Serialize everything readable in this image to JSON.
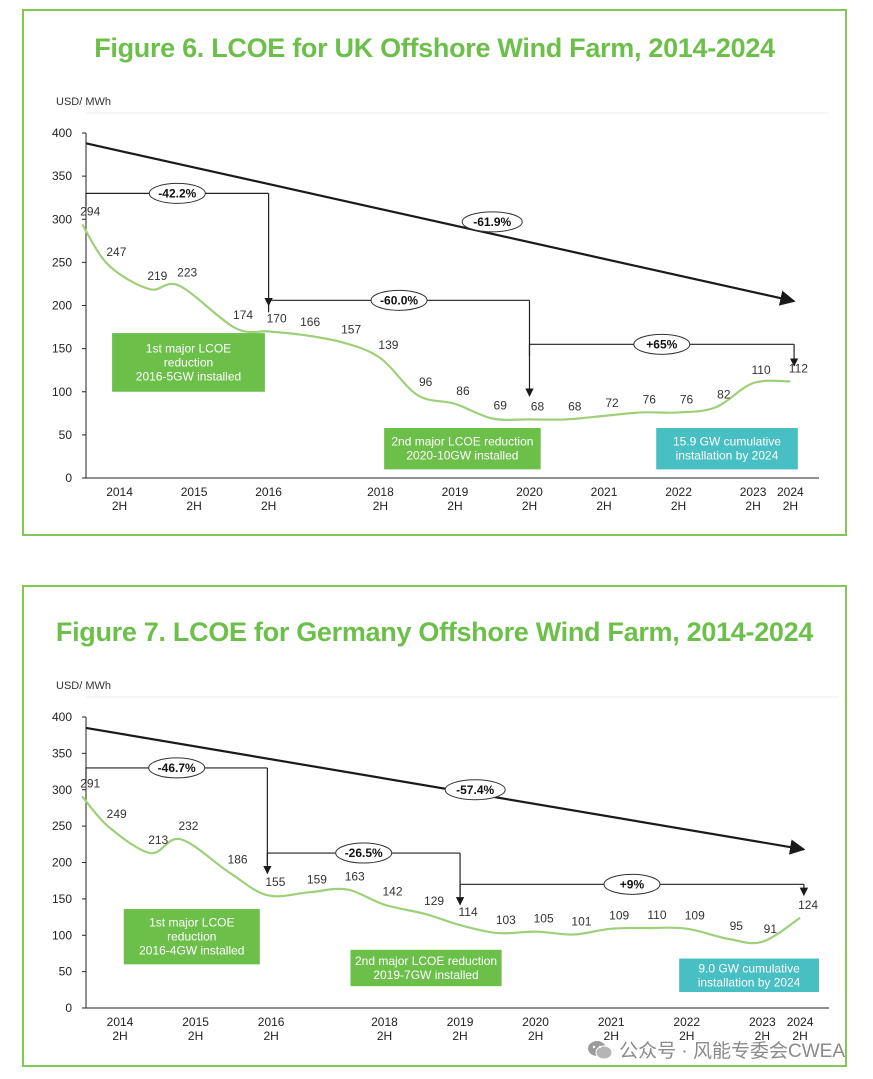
{
  "watermark": {
    "text": "公众号 · 风能专委会CWEA",
    "icon": "wechat-icon"
  },
  "colors": {
    "accent": "#6cc04a",
    "curve": "#9ed07a",
    "annot_green": "#6cc04a",
    "annot_teal": "#47bfc3",
    "trend": "#1a1a1a"
  },
  "chart_data": [
    {
      "type": "line",
      "title": "Figure 6. LCOE for UK Offshore Wind Farm, 2014-2024",
      "ylabel": "USD/ MWh",
      "xlabel": "",
      "ylim": [
        0,
        400
      ],
      "yticks": [
        0,
        50,
        100,
        150,
        200,
        250,
        300,
        350,
        400
      ],
      "xticks": [
        {
          "x": 2014.5,
          "label1": "2014",
          "label2": "2H"
        },
        {
          "x": 2015.5,
          "label1": "2015",
          "label2": "2H"
        },
        {
          "x": 2016.5,
          "label1": "2016",
          "label2": "2H"
        },
        {
          "x": 2018.0,
          "label1": "2018",
          "label2": "2H"
        },
        {
          "x": 2019.0,
          "label1": "2019",
          "label2": "2H"
        },
        {
          "x": 2020.0,
          "label1": "2020",
          "label2": "2H"
        },
        {
          "x": 2021.0,
          "label1": "2021",
          "label2": "2H"
        },
        {
          "x": 2022.0,
          "label1": "2022",
          "label2": "2H"
        },
        {
          "x": 2023.0,
          "label1": "2023",
          "label2": "2H"
        },
        {
          "x": 2023.5,
          "label1": "2024",
          "label2": "2H"
        }
      ],
      "xrange": [
        2014.05,
        2023.75
      ],
      "series": [
        {
          "points": [
            [
              2014.0,
              294
            ],
            [
              2014.35,
              247
            ],
            [
              2014.9,
              219
            ],
            [
              2015.3,
              223
            ],
            [
              2016.05,
              174
            ],
            [
              2016.5,
              170
            ],
            [
              2016.95,
              166
            ],
            [
              2017.5,
              157
            ],
            [
              2018.0,
              139
            ],
            [
              2018.5,
              96
            ],
            [
              2019.0,
              86
            ],
            [
              2019.5,
              69
            ],
            [
              2020.0,
              68
            ],
            [
              2020.5,
              68
            ],
            [
              2021.0,
              72
            ],
            [
              2021.5,
              76
            ],
            [
              2022.0,
              76
            ],
            [
              2022.5,
              82
            ],
            [
              2023.0,
              110
            ],
            [
              2023.5,
              112
            ]
          ]
        }
      ],
      "trend": {
        "from": [
          2014.05,
          388
        ],
        "to": [
          2023.55,
          205
        ],
        "label": "-61.9%",
        "label_at": [
          2019.5,
          297
        ]
      },
      "brackets": [
        {
          "x1": 2014.05,
          "x2": 2016.5,
          "y": 330,
          "yend": 200,
          "label": "-42.2%"
        },
        {
          "x1": 2016.5,
          "x2": 2020.0,
          "y": 206,
          "yend": 95,
          "label": "-60.0%"
        },
        {
          "x1": 2020.0,
          "x2": 2023.55,
          "y": 155,
          "yend": 130,
          "label": "+65%"
        }
      ],
      "annotations": [
        {
          "lines": [
            "1st major LCOE",
            "reduction",
            "2016-5GW installed"
          ],
          "color": "teal_no",
          "bg": "green",
          "at": [
            2014.4,
            168,
            2016.45,
            100
          ]
        },
        {
          "lines": [
            "2nd major LCOE reduction",
            "2020-10GW installed"
          ],
          "bg": "green",
          "at": [
            2018.05,
            58,
            2020.15,
            10
          ]
        },
        {
          "lines": [
            "15.9 GW cumulative",
            "installation by 2024"
          ],
          "bg": "teal",
          "at": [
            2021.7,
            58,
            2023.6,
            10
          ]
        }
      ]
    },
    {
      "type": "line",
      "title": "Figure 7. LCOE for Germany Offshore Wind Farm, 2014-2024",
      "ylabel": "USD/ MWh",
      "xlabel": "",
      "ylim": [
        0,
        400
      ],
      "yticks": [
        0,
        50,
        100,
        150,
        200,
        250,
        300,
        350,
        400
      ],
      "xticks": [
        {
          "x": 2014.5,
          "label1": "2014",
          "label2": "2H"
        },
        {
          "x": 2015.5,
          "label1": "2015",
          "label2": "2H"
        },
        {
          "x": 2016.5,
          "label1": "2016",
          "label2": "2H"
        },
        {
          "x": 2018.0,
          "label1": "2018",
          "label2": "2H"
        },
        {
          "x": 2019.0,
          "label1": "2019",
          "label2": "2H"
        },
        {
          "x": 2020.0,
          "label1": "2020",
          "label2": "2H"
        },
        {
          "x": 2021.0,
          "label1": "2021",
          "label2": "2H"
        },
        {
          "x": 2022.0,
          "label1": "2022",
          "label2": "2H"
        },
        {
          "x": 2023.0,
          "label1": "2023",
          "label2": "2H"
        },
        {
          "x": 2023.5,
          "label1": "2024",
          "label2": "2H"
        }
      ],
      "xrange": [
        2014.05,
        2023.75
      ],
      "series": [
        {
          "points": [
            [
              2014.0,
              291
            ],
            [
              2014.35,
              249
            ],
            [
              2014.9,
              213
            ],
            [
              2015.3,
              232
            ],
            [
              2015.95,
              186
            ],
            [
              2016.45,
              155
            ],
            [
              2017.0,
              159
            ],
            [
              2017.5,
              163
            ],
            [
              2018.0,
              142
            ],
            [
              2018.55,
              129
            ],
            [
              2019.0,
              114
            ],
            [
              2019.5,
              103
            ],
            [
              2020.0,
              105
            ],
            [
              2020.5,
              101
            ],
            [
              2021.0,
              109
            ],
            [
              2021.5,
              110
            ],
            [
              2022.0,
              109
            ],
            [
              2022.55,
              95
            ],
            [
              2023.0,
              91
            ],
            [
              2023.5,
              124
            ]
          ]
        }
      ],
      "trend": {
        "from": [
          2014.05,
          385
        ],
        "to": [
          2023.55,
          218
        ],
        "label": "-57.4%",
        "label_at": [
          2019.2,
          300
        ]
      },
      "brackets": [
        {
          "x1": 2014.05,
          "x2": 2016.45,
          "y": 330,
          "yend": 185,
          "label": "-46.7%"
        },
        {
          "x1": 2016.45,
          "x2": 2019.0,
          "y": 213,
          "yend": 142,
          "label": "-26.5%"
        },
        {
          "x1": 2019.0,
          "x2": 2023.55,
          "y": 170,
          "yend": 155,
          "label": "+9%"
        }
      ],
      "annotations": [
        {
          "lines": [
            "1st major LCOE",
            "reduction",
            "2016-4GW installed"
          ],
          "bg": "green",
          "at": [
            2014.55,
            136,
            2016.35,
            60
          ]
        },
        {
          "lines": [
            "2nd major LCOE reduction",
            "2019-7GW installed"
          ],
          "bg": "green",
          "at": [
            2017.55,
            80,
            2019.55,
            30
          ]
        },
        {
          "lines": [
            "9.0 GW cumulative",
            "installation by 2024"
          ],
          "bg": "teal",
          "at": [
            2021.9,
            68,
            2023.75,
            22
          ]
        }
      ]
    }
  ]
}
